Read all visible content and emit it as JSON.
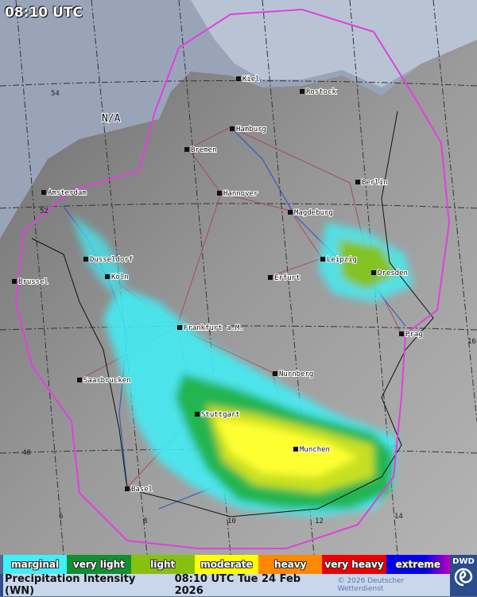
{
  "time_overlay": "08:10 UTC",
  "map": {
    "no_data_label": "N/A",
    "cities": [
      "Kiel",
      "Rostock",
      "Hamburg",
      "Bremen",
      "Hannover",
      "Berlin",
      "Magdeburg",
      "Leipzig",
      "Dresden",
      "Erfurt",
      "Frankfurt a.M.",
      "Nurnberg",
      "Stuttgart",
      "Munchen",
      "Saarbrucken",
      "Basel",
      "Prag",
      "Amsterdam",
      "Dusseldorf",
      "Koln",
      "Brussel"
    ],
    "grid_labels": [
      "54",
      "52",
      "48",
      "6",
      "8",
      "10",
      "12",
      "14",
      "16"
    ],
    "colors": {
      "radar_outline": "#e040e0",
      "borders": "#111111",
      "roads": "#a04050",
      "rivers": "#3050c0",
      "terrain": "#8a8a8a",
      "sea": "#b8c4d4"
    }
  },
  "legend": [
    {
      "label": "marginal",
      "color": "#40f0f8"
    },
    {
      "label": "very light",
      "color": "#109030"
    },
    {
      "label": "light",
      "color": "#88c010"
    },
    {
      "label": "moderate",
      "color": "#ffff00"
    },
    {
      "label": "heavy",
      "color": "#ff8800"
    },
    {
      "label": "very heavy",
      "color": "#ee0000"
    },
    {
      "label": "extreme",
      "color": "#0000ee"
    }
  ],
  "footer": {
    "title": "Precipitation Intensity (WN)",
    "datetime": "08:10 UTC Tue 24 Feb 2026",
    "copyright": "© 2026 Deutscher Wetterdienst"
  },
  "logo": {
    "text": "DWD"
  }
}
